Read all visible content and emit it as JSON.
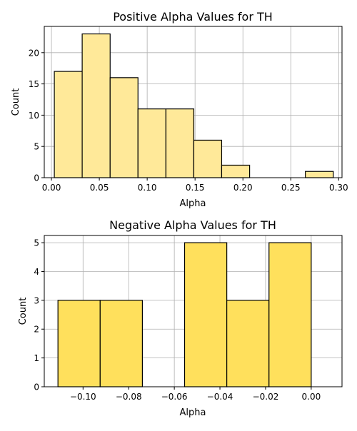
{
  "chart_data": [
    {
      "type": "bar",
      "title": "Positive Alpha Values for TH",
      "xlabel": "Alpha",
      "ylabel": "Count",
      "xlim": [
        -0.0075,
        0.3035
      ],
      "ylim": [
        0,
        24.2
      ],
      "xticks": [
        0.0,
        0.05,
        0.1,
        0.15,
        0.2,
        0.25,
        0.3
      ],
      "xtick_labels": [
        "0.00",
        "0.05",
        "0.10",
        "0.15",
        "0.20",
        "0.25",
        "0.30"
      ],
      "yticks": [
        0,
        5,
        10,
        15,
        20
      ],
      "ytick_labels": [
        "0",
        "5",
        "10",
        "15",
        "20"
      ],
      "bin_edges": [
        0.003,
        0.0321,
        0.0613,
        0.0904,
        0.1196,
        0.1487,
        0.1778,
        0.207,
        0.2361,
        0.2652,
        0.2944
      ],
      "counts": [
        17,
        23,
        16,
        11,
        11,
        6,
        2,
        0,
        0,
        1
      ],
      "grid": true,
      "bar_color": "#ffe999",
      "edge_color": "#000000"
    },
    {
      "type": "bar",
      "title": "Negative Alpha Values for TH",
      "xlabel": "Alpha",
      "ylabel": "Count",
      "xlim": [
        -0.117,
        0.0135
      ],
      "ylim": [
        0,
        5.25
      ],
      "xticks": [
        -0.1,
        -0.08,
        -0.06,
        -0.04,
        -0.02,
        0.0
      ],
      "xtick_labels": [
        "−0.10",
        "−0.08",
        "−0.06",
        "−0.04",
        "−0.02",
        "0.00"
      ],
      "yticks": [
        0,
        1,
        2,
        3,
        4,
        5
      ],
      "ytick_labels": [
        "0",
        "1",
        "2",
        "3",
        "4",
        "5"
      ],
      "bin_edges": [
        -0.111,
        -0.0925,
        -0.074,
        -0.0555,
        -0.037,
        -0.0185,
        0.0
      ],
      "counts": [
        3,
        3,
        0,
        5,
        3,
        5
      ],
      "grid": true,
      "bar_color": "#ffe05c",
      "edge_color": "#000000"
    }
  ]
}
